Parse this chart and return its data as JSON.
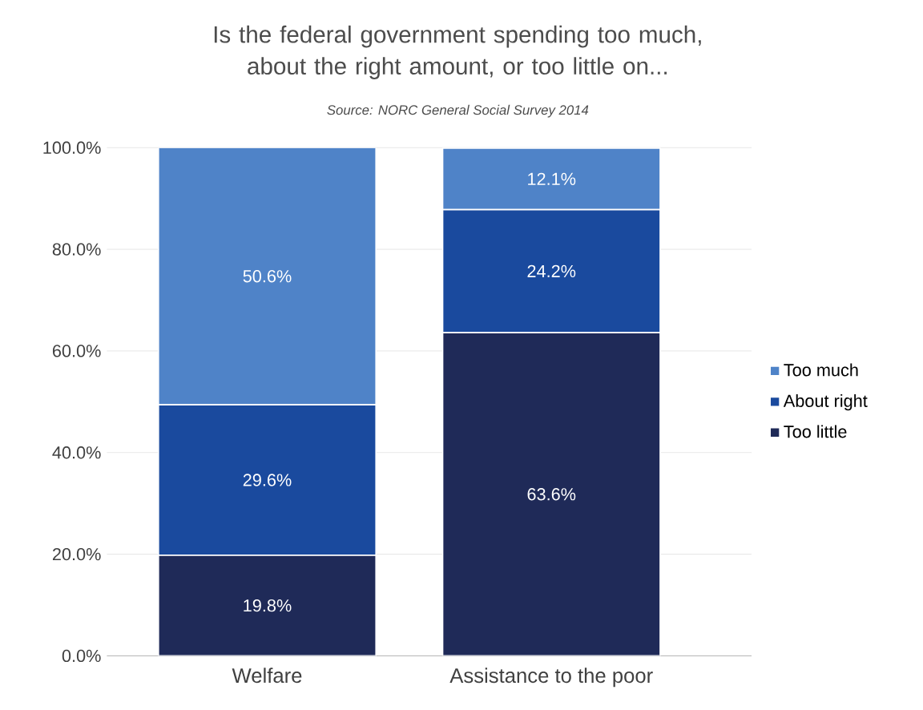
{
  "chart_data": {
    "type": "bar",
    "stacked": true,
    "title": "Is the federal government spending too much, about the right amount, or too little on...",
    "annotations": [
      "Source: NORC General Social Survey 2014"
    ],
    "categories": [
      "Welfare",
      "Assistance to the poor"
    ],
    "series": [
      {
        "name": "Too little",
        "color": "#1f2a58",
        "values": [
          19.8,
          63.6
        ],
        "value_labels": [
          "19.8%",
          "63.6%"
        ]
      },
      {
        "name": "About right",
        "color": "#1a4a9e",
        "values": [
          29.6,
          24.2
        ],
        "value_labels": [
          "29.6%",
          "24.2%"
        ]
      },
      {
        "name": "Too much",
        "color": "#4f83c8",
        "values": [
          50.6,
          12.1
        ],
        "value_labels": [
          "50.6%",
          "12.1%"
        ]
      }
    ],
    "ylim": [
      0,
      100
    ],
    "yticks": [
      {
        "value": 0,
        "label": "0.0%"
      },
      {
        "value": 20,
        "label": "20.0%"
      },
      {
        "value": 40,
        "label": "40.0%"
      },
      {
        "value": 60,
        "label": "60.0%"
      },
      {
        "value": 80,
        "label": "80.0%"
      },
      {
        "value": 100,
        "label": "100.0%"
      }
    ],
    "grid": "y",
    "legend": "right"
  }
}
